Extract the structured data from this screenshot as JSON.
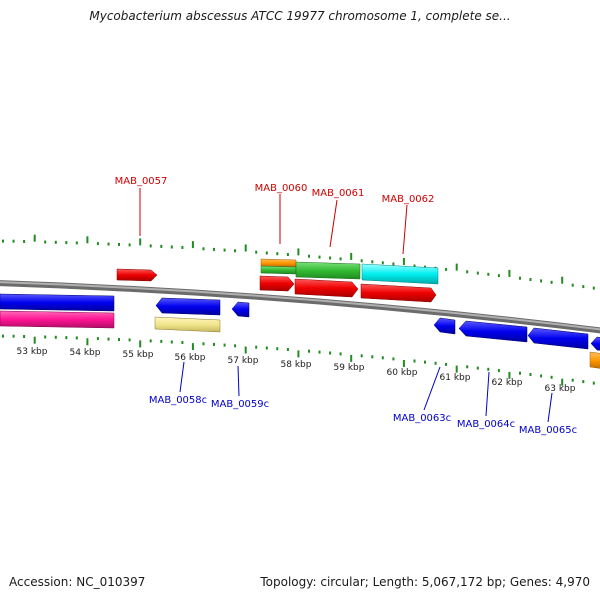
{
  "title": "Mycobacterium abscessus ATCC 19977 chromosome 1, complete se...",
  "footer": {
    "accession": "Accession: NC_010397",
    "summary": "Topology: circular; Length: 5,067,172 bp; Genes: 4,970"
  },
  "scale_labels": [
    {
      "id": "53",
      "text": "53 kbp"
    },
    {
      "id": "54",
      "text": "54 kbp"
    },
    {
      "id": "55",
      "text": "55 kbp"
    },
    {
      "id": "56",
      "text": "56 kbp"
    },
    {
      "id": "57",
      "text": "57 kbp"
    },
    {
      "id": "58",
      "text": "58 kbp"
    },
    {
      "id": "59",
      "text": "59 kbp"
    },
    {
      "id": "60",
      "text": "60 kbp"
    },
    {
      "id": "61",
      "text": "61 kbp"
    },
    {
      "id": "62",
      "text": "62 kbp"
    },
    {
      "id": "63",
      "text": "63 kbp"
    }
  ],
  "gene_labels": {
    "forward": [
      "MAB_0057",
      "MAB_0060",
      "MAB_0061",
      "MAB_0062"
    ],
    "reverse": [
      "MAB_0058c",
      "MAB_0059c",
      "MAB_0063c",
      "MAB_0064c",
      "MAB_0065c"
    ]
  },
  "colors": {
    "forward_label": "#cc0000",
    "reverse_label": "#0000cc",
    "tick": "#228b22",
    "backbone": "#8c8c8c",
    "red_feature": "#ee0000",
    "blue_feature": "#0000ee",
    "magenta_feature": "#ff1493",
    "green_feature": "#33bb33",
    "cyan_feature": "#00eeee",
    "orange_feature": "#ff9900",
    "khaki_feature": "#f0e68c"
  }
}
